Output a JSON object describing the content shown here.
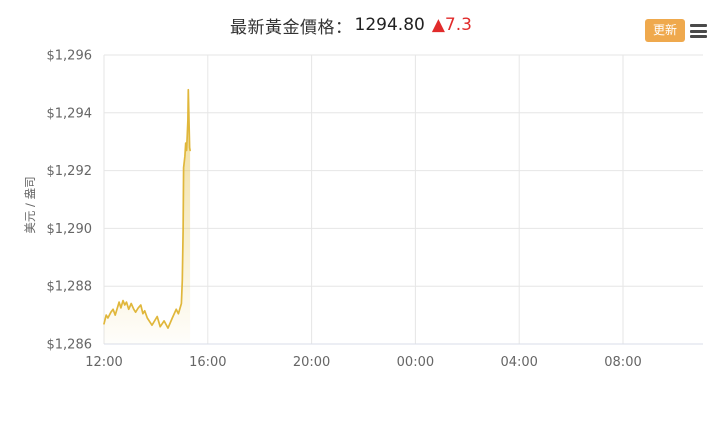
{
  "header": {
    "title_label": "最新黃金價格：",
    "price": "1294.80",
    "change": "▲7.3",
    "refresh_label": "更新",
    "accent_color": "#efa94d",
    "change_color": "#e12b2b"
  },
  "chart_data": {
    "type": "area",
    "title": "",
    "xlabel": "",
    "ylabel": "美元 / 盎司",
    "ylim": [
      1286,
      1296
    ],
    "x_span_minutes": 1385,
    "grid": true,
    "legend": false,
    "yticks": {
      "values": [
        1286,
        1288,
        1290,
        1292,
        1294,
        1296
      ],
      "labels": [
        "$1,286",
        "$1,288",
        "$1,290",
        "$1,292",
        "$1,294",
        "$1,296"
      ]
    },
    "xticks": {
      "minutes": [
        0,
        240,
        480,
        720,
        960,
        1200
      ],
      "labels": [
        "12:00",
        "16:00",
        "20:00",
        "00:00",
        "04:00",
        "08:00"
      ]
    },
    "colors": {
      "line": "#e0b73b",
      "fill_top": "rgba(227,189,58,0.55)",
      "fill_bottom": "rgba(227,189,58,0.02)",
      "grid": "#e6e6e6",
      "axis_line": "#d9dee9",
      "tick": "#666666"
    },
    "series": [
      {
        "name": "黃金價格",
        "points": [
          [
            0,
            1286.7
          ],
          [
            5,
            1287.0
          ],
          [
            9,
            1286.9
          ],
          [
            16,
            1287.1
          ],
          [
            21,
            1287.2
          ],
          [
            26,
            1287.0
          ],
          [
            35,
            1287.45
          ],
          [
            39,
            1287.25
          ],
          [
            44,
            1287.5
          ],
          [
            48,
            1287.35
          ],
          [
            52,
            1287.45
          ],
          [
            57,
            1287.2
          ],
          [
            63,
            1287.4
          ],
          [
            69,
            1287.2
          ],
          [
            73,
            1287.1
          ],
          [
            79,
            1287.25
          ],
          [
            85,
            1287.35
          ],
          [
            90,
            1287.05
          ],
          [
            94,
            1287.15
          ],
          [
            100,
            1286.9
          ],
          [
            111,
            1286.65
          ],
          [
            123,
            1286.95
          ],
          [
            130,
            1286.6
          ],
          [
            139,
            1286.8
          ],
          [
            148,
            1286.55
          ],
          [
            158,
            1286.9
          ],
          [
            167,
            1287.2
          ],
          [
            172,
            1287.05
          ],
          [
            179,
            1287.4
          ],
          [
            181,
            1288.2
          ],
          [
            183,
            1289.9
          ],
          [
            184,
            1292.1
          ],
          [
            187,
            1292.5
          ],
          [
            189,
            1292.95
          ],
          [
            191,
            1292.7
          ],
          [
            194,
            1293.75
          ],
          [
            195,
            1294.8
          ],
          [
            198,
            1292.8
          ],
          [
            199,
            1292.7
          ]
        ]
      }
    ]
  }
}
